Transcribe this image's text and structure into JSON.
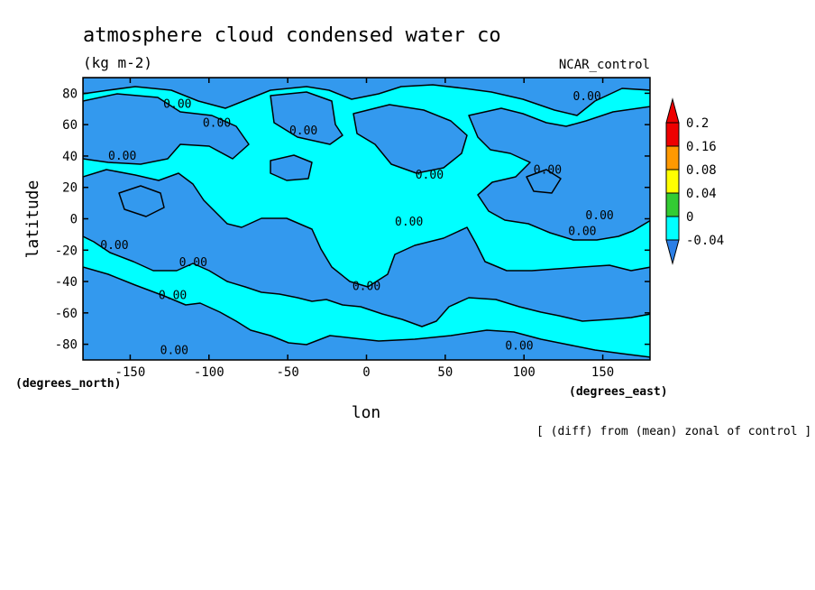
{
  "chart_data": {
    "type": "heatmap",
    "title": "atmosphere cloud condensed water co",
    "units": "(kg m-2)",
    "dataset_label": "NCAR_control",
    "xlabel": "lon",
    "ylabel": "latitude",
    "x_units": "(degrees_east)",
    "y_units": "(degrees_north)",
    "xlim": [
      -180,
      180
    ],
    "ylim": [
      -90,
      90
    ],
    "x_ticks": [
      -150,
      -100,
      -50,
      0,
      50,
      100,
      150
    ],
    "y_ticks": [
      80,
      60,
      40,
      20,
      0,
      -20,
      -40,
      -60,
      -80
    ],
    "x_tick_labels": [
      "-150",
      "-100",
      "-50",
      "0",
      "50",
      "100",
      "150"
    ],
    "y_tick_labels": [
      "80",
      "60",
      "40",
      "20",
      "0",
      "-20",
      "-40",
      "-60",
      "-80"
    ],
    "footnote": "[ (diff) from (mean) zonal of control ]",
    "contour_level": 0.0,
    "contour_label": "0.00",
    "colorbar": {
      "levels": [
        -0.04,
        0,
        0.04,
        0.08,
        0.16,
        0.2
      ],
      "level_labels": [
        "-0.04",
        "0",
        "0.04",
        "0.08",
        "0.16",
        "0.2"
      ],
      "colors": [
        "#2c7fe6",
        "#00ffff",
        "#33cc33",
        "#ffff00",
        "#ff9900",
        "#ee0000"
      ],
      "extend": "both"
    },
    "fields": {
      "negative_color": "#3399ee",
      "positive_color": "#00ffff"
    },
    "contour_labels": [
      {
        "lon": -120,
        "lat": 73
      },
      {
        "lon": -95,
        "lat": 61
      },
      {
        "lon": -40,
        "lat": 56
      },
      {
        "lon": -155,
        "lat": 40
      },
      {
        "lon": 40,
        "lat": 28
      },
      {
        "lon": 115,
        "lat": 31
      },
      {
        "lon": 140,
        "lat": 78
      },
      {
        "lon": 148,
        "lat": 2
      },
      {
        "lon": 137,
        "lat": -8
      },
      {
        "lon": 27,
        "lat": -2
      },
      {
        "lon": -160,
        "lat": -17
      },
      {
        "lon": -110,
        "lat": -28
      },
      {
        "lon": -123,
        "lat": -49
      },
      {
        "lon": 0,
        "lat": -43
      },
      {
        "lon": -122,
        "lat": -84
      },
      {
        "lon": 97,
        "lat": -81
      }
    ]
  }
}
